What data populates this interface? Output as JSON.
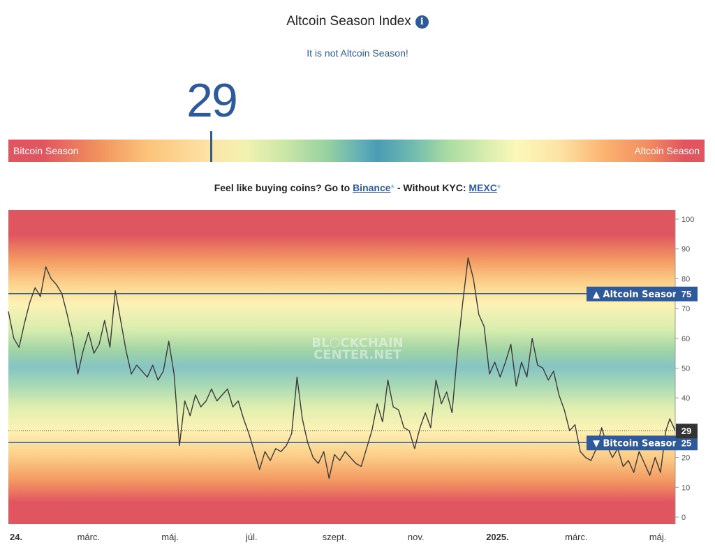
{
  "header": {
    "title": "Altcoin Season Index",
    "info_icon": "info-icon",
    "status": "It is not Altcoin Season!"
  },
  "index": {
    "value": "29",
    "value_number": 29,
    "left_label": "Bitcoin Season",
    "right_label": "Altcoin Season"
  },
  "promo": {
    "prefix": "Feel like buying coins? Go to ",
    "binance": "Binance",
    "star1": "*",
    "middle": " - Without KYC: ",
    "mexc": "MEXC",
    "star2": "*"
  },
  "colors": {
    "accent": "#2f5a9a",
    "red": "#e05660",
    "teal": "#4a9cb4",
    "line": "#3a3a3a",
    "current_badge": "#333333"
  },
  "chart_data": {
    "type": "line",
    "watermark": [
      "BL⬡CKCHAIN",
      "CENTER.NET"
    ],
    "ylim": [
      0,
      100
    ],
    "y_ticks": [
      0,
      10,
      20,
      30,
      40,
      50,
      60,
      70,
      80,
      90,
      100
    ],
    "x_range": [
      "2024-01-01",
      "2025-05-14"
    ],
    "x_ticks": [
      {
        "date": "2024-01-01",
        "label": "24.",
        "bold": true
      },
      {
        "date": "2024-03-01",
        "label": "márc.",
        "bold": false
      },
      {
        "date": "2024-05-01",
        "label": "máj.",
        "bold": false
      },
      {
        "date": "2024-07-01",
        "label": "júl.",
        "bold": false
      },
      {
        "date": "2024-09-01",
        "label": "szept.",
        "bold": false
      },
      {
        "date": "2024-11-01",
        "label": "nov.",
        "bold": false
      },
      {
        "date": "2025-01-01",
        "label": "2025.",
        "bold": true
      },
      {
        "date": "2025-03-01",
        "label": "márc.",
        "bold": false
      },
      {
        "date": "2025-05-01",
        "label": "máj.",
        "bold": false
      }
    ],
    "reference_lines": [
      {
        "name": "Altcoin Season",
        "value": 75,
        "label": "▲ Altcoin Season",
        "value_label": "75"
      },
      {
        "name": "Bitcoin Season",
        "value": 25,
        "label": "▼ Bitcoin Season",
        "value_label": "25"
      }
    ],
    "current": {
      "value": 29,
      "label": "29"
    },
    "series": [
      {
        "points": [
          [
            "2024-01-01",
            69
          ],
          [
            "2024-01-05",
            60
          ],
          [
            "2024-01-09",
            57
          ],
          [
            "2024-01-13",
            65
          ],
          [
            "2024-01-17",
            72
          ],
          [
            "2024-01-21",
            77
          ],
          [
            "2024-01-25",
            74
          ],
          [
            "2024-01-29",
            84
          ],
          [
            "2024-02-02",
            80
          ],
          [
            "2024-02-06",
            78
          ],
          [
            "2024-02-10",
            75
          ],
          [
            "2024-02-14",
            68
          ],
          [
            "2024-02-18",
            60
          ],
          [
            "2024-02-22",
            48
          ],
          [
            "2024-02-26",
            56
          ],
          [
            "2024-03-01",
            62
          ],
          [
            "2024-03-05",
            55
          ],
          [
            "2024-03-09",
            58
          ],
          [
            "2024-03-13",
            66
          ],
          [
            "2024-03-17",
            57
          ],
          [
            "2024-03-21",
            76
          ],
          [
            "2024-03-25",
            66
          ],
          [
            "2024-03-29",
            56
          ],
          [
            "2024-04-02",
            48
          ],
          [
            "2024-04-06",
            51
          ],
          [
            "2024-04-10",
            49
          ],
          [
            "2024-04-14",
            47
          ],
          [
            "2024-04-18",
            51
          ],
          [
            "2024-04-22",
            46
          ],
          [
            "2024-04-26",
            49
          ],
          [
            "2024-04-30",
            59
          ],
          [
            "2024-05-04",
            48
          ],
          [
            "2024-05-08",
            24
          ],
          [
            "2024-05-12",
            39
          ],
          [
            "2024-05-16",
            34
          ],
          [
            "2024-05-20",
            41
          ],
          [
            "2024-05-24",
            37
          ],
          [
            "2024-05-28",
            39
          ],
          [
            "2024-06-01",
            43
          ],
          [
            "2024-06-05",
            39
          ],
          [
            "2024-06-09",
            41
          ],
          [
            "2024-06-13",
            43
          ],
          [
            "2024-06-17",
            37
          ],
          [
            "2024-06-21",
            39
          ],
          [
            "2024-06-25",
            33
          ],
          [
            "2024-06-29",
            28
          ],
          [
            "2024-07-03",
            22
          ],
          [
            "2024-07-07",
            16
          ],
          [
            "2024-07-11",
            22
          ],
          [
            "2024-07-15",
            19
          ],
          [
            "2024-07-19",
            23
          ],
          [
            "2024-07-23",
            22
          ],
          [
            "2024-07-27",
            24
          ],
          [
            "2024-07-31",
            28
          ],
          [
            "2024-08-04",
            47
          ],
          [
            "2024-08-08",
            33
          ],
          [
            "2024-08-12",
            25
          ],
          [
            "2024-08-16",
            20
          ],
          [
            "2024-08-20",
            18
          ],
          [
            "2024-08-24",
            22
          ],
          [
            "2024-08-28",
            13
          ],
          [
            "2024-09-01",
            21
          ],
          [
            "2024-09-05",
            19
          ],
          [
            "2024-09-09",
            22
          ],
          [
            "2024-09-13",
            20
          ],
          [
            "2024-09-17",
            18
          ],
          [
            "2024-09-21",
            17
          ],
          [
            "2024-09-25",
            23
          ],
          [
            "2024-09-29",
            29
          ],
          [
            "2024-10-03",
            38
          ],
          [
            "2024-10-07",
            32
          ],
          [
            "2024-10-11",
            46
          ],
          [
            "2024-10-15",
            37
          ],
          [
            "2024-10-19",
            36
          ],
          [
            "2024-10-23",
            30
          ],
          [
            "2024-10-27",
            29
          ],
          [
            "2024-10-31",
            23
          ],
          [
            "2024-11-04",
            30
          ],
          [
            "2024-11-08",
            35
          ],
          [
            "2024-11-12",
            30
          ],
          [
            "2024-11-16",
            46
          ],
          [
            "2024-11-20",
            38
          ],
          [
            "2024-11-24",
            42
          ],
          [
            "2024-11-28",
            35
          ],
          [
            "2024-12-02",
            55
          ],
          [
            "2024-12-06",
            72
          ],
          [
            "2024-12-10",
            87
          ],
          [
            "2024-12-14",
            80
          ],
          [
            "2024-12-18",
            68
          ],
          [
            "2024-12-22",
            64
          ],
          [
            "2024-12-26",
            48
          ],
          [
            "2024-12-30",
            52
          ],
          [
            "2025-01-03",
            47
          ],
          [
            "2025-01-07",
            52
          ],
          [
            "2025-01-11",
            58
          ],
          [
            "2025-01-15",
            44
          ],
          [
            "2025-01-19",
            52
          ],
          [
            "2025-01-23",
            47
          ],
          [
            "2025-01-27",
            60
          ],
          [
            "2025-01-31",
            51
          ],
          [
            "2025-02-04",
            50
          ],
          [
            "2025-02-08",
            46
          ],
          [
            "2025-02-12",
            49
          ],
          [
            "2025-02-16",
            41
          ],
          [
            "2025-02-20",
            36
          ],
          [
            "2025-02-24",
            29
          ],
          [
            "2025-02-28",
            31
          ],
          [
            "2025-03-04",
            22
          ],
          [
            "2025-03-08",
            20
          ],
          [
            "2025-03-12",
            19
          ],
          [
            "2025-03-16",
            23
          ],
          [
            "2025-03-20",
            30
          ],
          [
            "2025-03-24",
            24
          ],
          [
            "2025-03-28",
            20
          ],
          [
            "2025-04-01",
            23
          ],
          [
            "2025-04-05",
            17
          ],
          [
            "2025-04-09",
            19
          ],
          [
            "2025-04-13",
            15
          ],
          [
            "2025-04-17",
            22
          ],
          [
            "2025-04-21",
            18
          ],
          [
            "2025-04-25",
            14
          ],
          [
            "2025-04-29",
            20
          ],
          [
            "2025-05-03",
            15
          ],
          [
            "2025-05-07",
            29
          ],
          [
            "2025-05-10",
            33
          ],
          [
            "2025-05-14",
            29
          ]
        ]
      }
    ]
  }
}
